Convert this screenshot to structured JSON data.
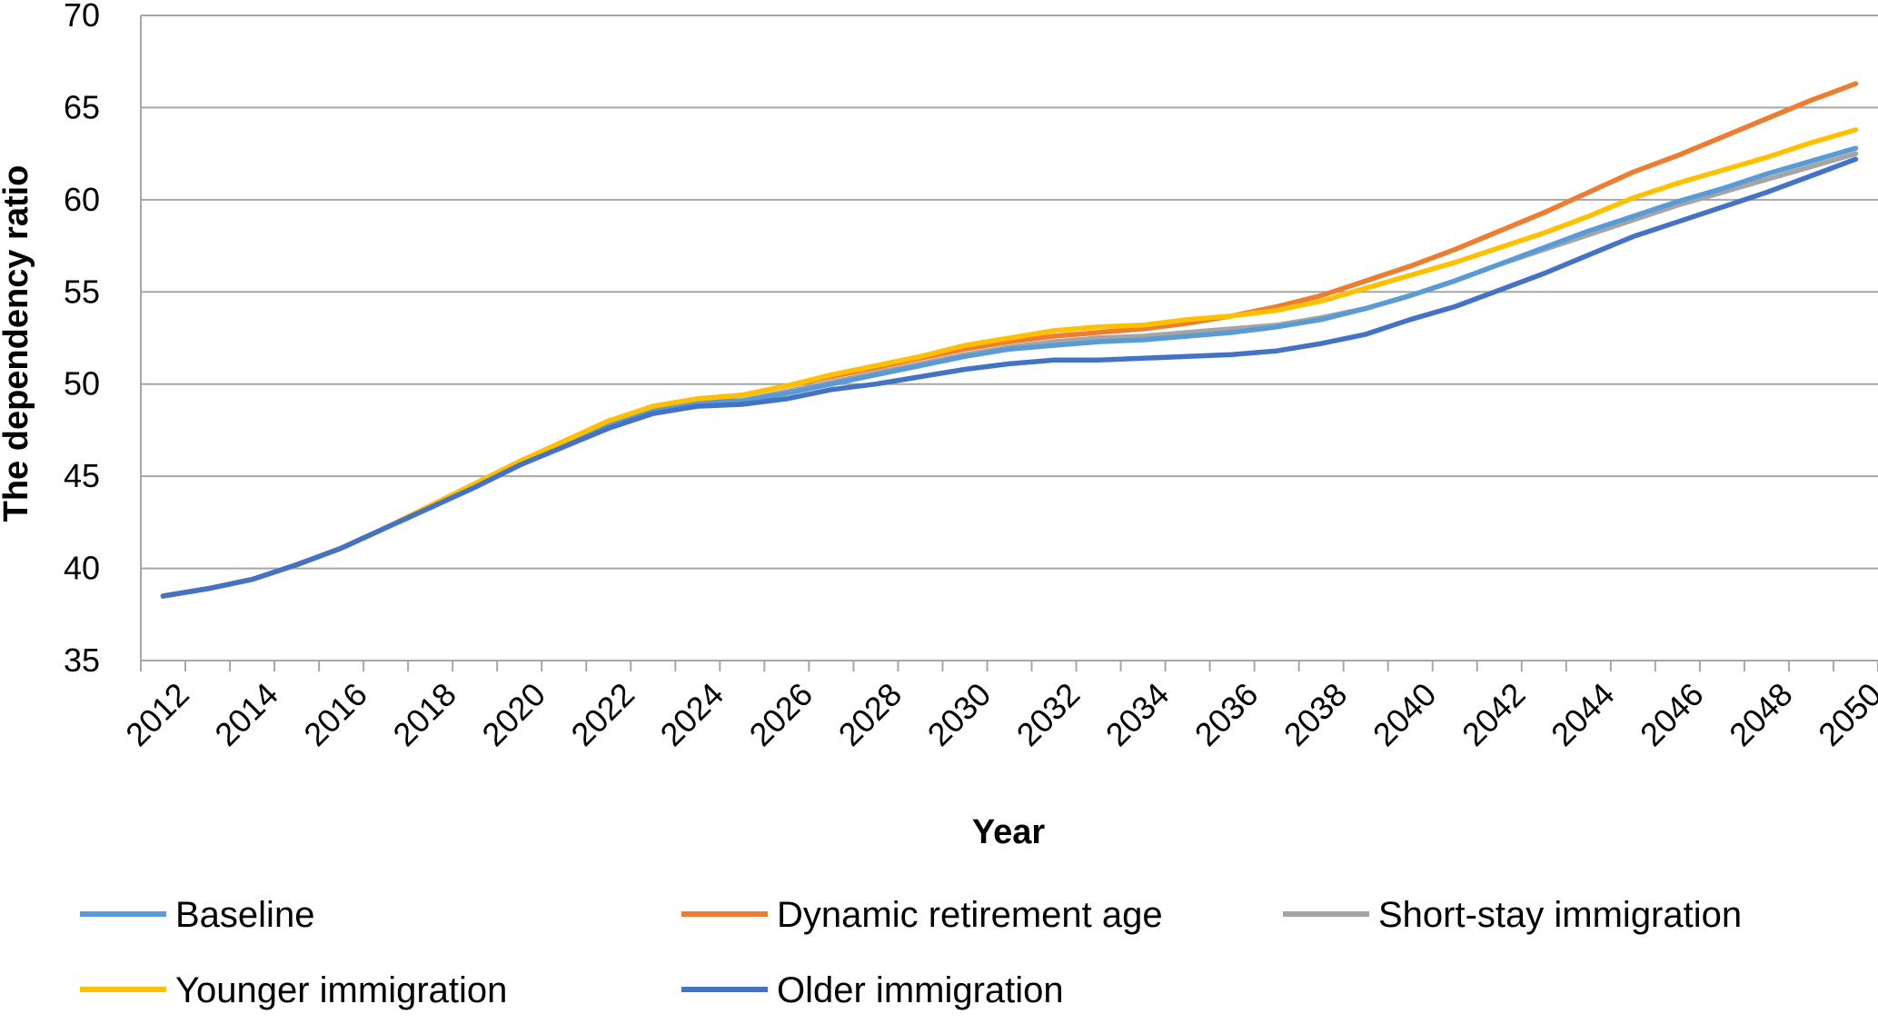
{
  "chart_data": {
    "type": "line",
    "title": "",
    "xlabel": "Year",
    "ylabel": "The dependency ratio",
    "ylim": [
      35,
      70
    ],
    "yticks": [
      35,
      40,
      45,
      50,
      55,
      60,
      65,
      70
    ],
    "xticks": [
      "2012",
      "2014",
      "2016",
      "2018",
      "2020",
      "2022",
      "2024",
      "2026",
      "2028",
      "2030",
      "2032",
      "2034",
      "2036",
      "2038",
      "2040",
      "2042",
      "2044",
      "2046",
      "2048",
      "2050"
    ],
    "grid": "horizontal",
    "legend_position": "bottom",
    "x": [
      2012,
      2013,
      2014,
      2015,
      2016,
      2017,
      2018,
      2019,
      2020,
      2021,
      2022,
      2023,
      2024,
      2025,
      2026,
      2027,
      2028,
      2029,
      2030,
      2031,
      2032,
      2033,
      2034,
      2035,
      2036,
      2037,
      2038,
      2039,
      2040,
      2041,
      2042,
      2043,
      2044,
      2045,
      2046,
      2047,
      2048,
      2049,
      2050
    ],
    "series": [
      {
        "name": "Baseline",
        "color": "#5B9BD5",
        "values": [
          38.5,
          38.9,
          39.4,
          40.2,
          41.1,
          42.2,
          43.3,
          44.4,
          45.6,
          46.7,
          47.8,
          48.6,
          49.0,
          49.1,
          49.5,
          50.0,
          50.5,
          51.0,
          51.5,
          51.9,
          52.1,
          52.3,
          52.4,
          52.6,
          52.8,
          53.1,
          53.5,
          54.1,
          54.8,
          55.6,
          56.5,
          57.4,
          58.3,
          59.1,
          59.9,
          60.6,
          61.4,
          62.1,
          62.8
        ]
      },
      {
        "name": "Dynamic retirement age",
        "color": "#ED7D31",
        "values": [
          38.5,
          38.9,
          39.4,
          40.2,
          41.1,
          42.2,
          43.4,
          44.6,
          45.8,
          46.9,
          48.0,
          48.8,
          49.2,
          49.4,
          49.9,
          50.4,
          50.9,
          51.4,
          51.9,
          52.3,
          52.6,
          52.8,
          53.0,
          53.3,
          53.7,
          54.2,
          54.8,
          55.6,
          56.4,
          57.3,
          58.3,
          59.3,
          60.4,
          61.5,
          62.4,
          63.4,
          64.4,
          65.4,
          66.3
        ]
      },
      {
        "name": "Short-stay immigration",
        "color": "#A5A5A5",
        "values": [
          38.5,
          38.9,
          39.4,
          40.2,
          41.1,
          42.2,
          43.3,
          44.4,
          45.6,
          46.7,
          47.8,
          48.6,
          49.0,
          49.1,
          49.6,
          50.1,
          50.6,
          51.1,
          51.6,
          52.0,
          52.3,
          52.5,
          52.6,
          52.8,
          53.0,
          53.2,
          53.6,
          54.1,
          54.8,
          55.6,
          56.5,
          57.3,
          58.1,
          58.9,
          59.7,
          60.4,
          61.1,
          61.8,
          62.5
        ]
      },
      {
        "name": "Younger immigration",
        "color": "#FFC000",
        "values": [
          38.5,
          38.9,
          39.4,
          40.2,
          41.1,
          42.2,
          43.4,
          44.6,
          45.8,
          46.9,
          48.0,
          48.8,
          49.2,
          49.4,
          49.9,
          50.5,
          51.0,
          51.5,
          52.1,
          52.5,
          52.9,
          53.1,
          53.2,
          53.5,
          53.7,
          54.0,
          54.5,
          55.2,
          55.9,
          56.6,
          57.4,
          58.2,
          59.1,
          60.1,
          60.9,
          61.6,
          62.3,
          63.1,
          63.8
        ]
      },
      {
        "name": "Older immigration",
        "color": "#4472C4",
        "values": [
          38.5,
          38.9,
          39.4,
          40.2,
          41.1,
          42.2,
          43.3,
          44.4,
          45.6,
          46.6,
          47.6,
          48.4,
          48.8,
          48.9,
          49.2,
          49.7,
          50.0,
          50.4,
          50.8,
          51.1,
          51.3,
          51.3,
          51.4,
          51.5,
          51.6,
          51.8,
          52.2,
          52.7,
          53.5,
          54.2,
          55.1,
          56.0,
          57.0,
          58.0,
          58.8,
          59.6,
          60.4,
          61.3,
          62.2
        ]
      }
    ]
  }
}
